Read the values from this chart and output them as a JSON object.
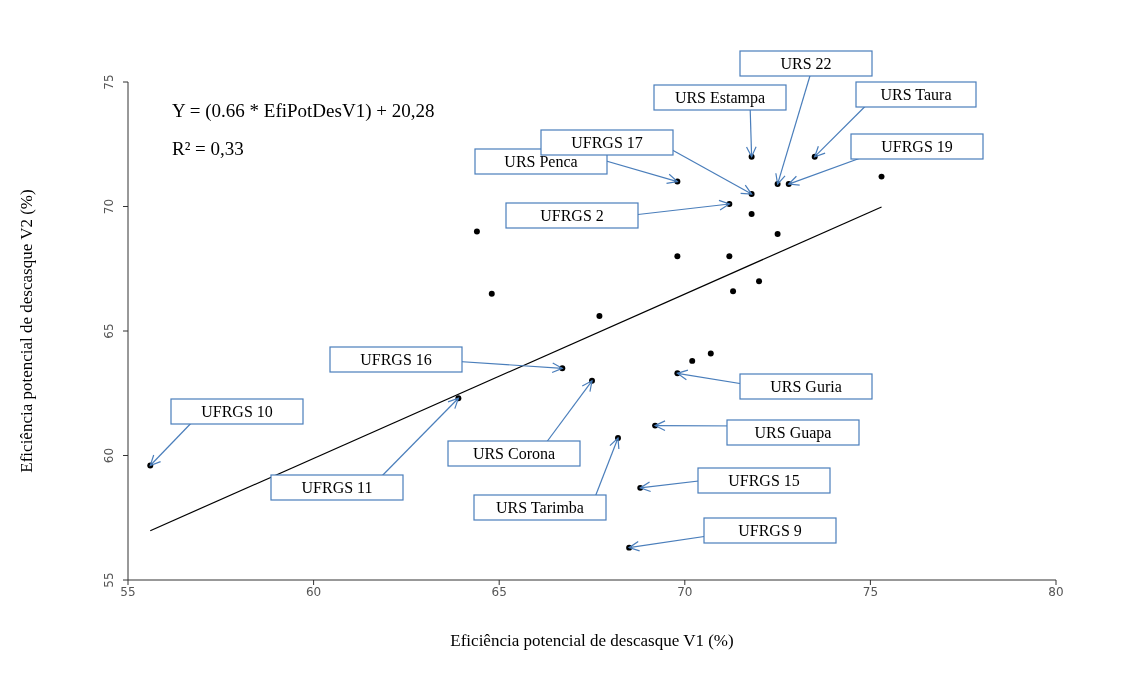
{
  "chart_data": {
    "type": "scatter",
    "xlabel": "Eficiência potencial de descasque V1 (%)",
    "ylabel": "Eficiência potencial de descasque V2 (%)",
    "xlim": [
      55,
      80
    ],
    "xticks": [
      55,
      60,
      65,
      70,
      75,
      80
    ],
    "ylim": [
      55,
      75
    ],
    "yticks": [
      55,
      60,
      65,
      70,
      75
    ],
    "grid": false,
    "legend": false,
    "marker": "circle",
    "series": [
      {
        "color": "#000000",
        "x": [
          55.6,
          64.4,
          64.8,
          67.7,
          66.7,
          67.5,
          63.9,
          68.2,
          71.8,
          73.5,
          69.8,
          72.5,
          72.8,
          75.3,
          71.8,
          71.2,
          71.8,
          72.5,
          69.8,
          71.2,
          72.0,
          71.3,
          70.7,
          70.2,
          69.8,
          69.2,
          68.8,
          68.5
        ],
        "values": [
          59.6,
          69.0,
          66.5,
          65.6,
          63.5,
          63.0,
          62.3,
          60.7,
          72.0,
          72.0,
          71.0,
          70.9,
          70.9,
          71.2,
          70.5,
          70.1,
          69.7,
          68.9,
          68.0,
          68.0,
          67.0,
          66.6,
          64.1,
          63.8,
          63.3,
          61.2,
          58.7,
          56.3
        ]
      },
      {
        "type": "line",
        "color": "#000000",
        "marker": "none",
        "line_style": "solid",
        "x": [
          55.6,
          75.3
        ],
        "values": [
          56.98,
          69.98
        ]
      }
    ],
    "annotations": [
      "Y = (0.66 * EfiPotDesV1) + 20,28",
      "R² = 0,33",
      {
        "text": "UFRGS 10",
        "x": 55.6,
        "y": 59.6
      },
      {
        "text": "UFRGS 11",
        "x": 63.9,
        "y": 62.3
      },
      {
        "text": "UFRGS 16",
        "x": 66.7,
        "y": 63.5
      },
      {
        "text": "URS Corona",
        "x": 67.5,
        "y": 63.0
      },
      {
        "text": "URS Tarimba",
        "x": 68.2,
        "y": 60.7
      },
      {
        "text": "URS Penca",
        "x": 69.8,
        "y": 71.0
      },
      {
        "text": "UFRGS 2",
        "x": 71.2,
        "y": 70.1
      },
      {
        "text": "UFRGS 17",
        "x": 71.8,
        "y": 70.5
      },
      {
        "text": "URS Estampa",
        "x": 71.8,
        "y": 72.0
      },
      {
        "text": "URS 22",
        "x": 72.5,
        "y": 70.9
      },
      {
        "text": "URS Taura",
        "x": 73.5,
        "y": 72.0
      },
      {
        "text": "UFRGS 19",
        "x": 72.8,
        "y": 70.9
      },
      {
        "text": "URS Guria",
        "x": 69.8,
        "y": 63.3
      },
      {
        "text": "URS Guapa",
        "x": 69.2,
        "y": 61.2
      },
      {
        "text": "UFRGS 15",
        "x": 68.8,
        "y": 58.7
      },
      {
        "text": "UFRGS 9",
        "x": 68.5,
        "y": 56.3
      }
    ]
  }
}
